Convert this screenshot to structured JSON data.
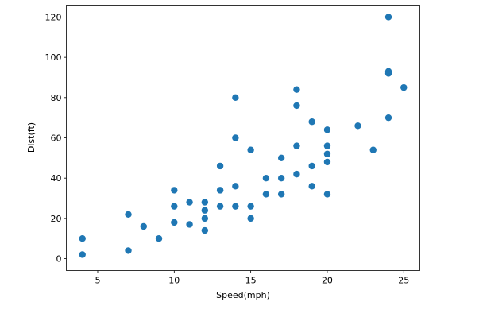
{
  "chart_data": {
    "type": "scatter",
    "title": "",
    "xlabel": "Speed(mph)",
    "ylabel": "Dist(ft)",
    "xlim": [
      2.95,
      26.05
    ],
    "ylim": [
      -5.9,
      125.9
    ],
    "xticks": [
      5,
      10,
      15,
      20,
      25
    ],
    "yticks": [
      0,
      20,
      40,
      60,
      80,
      100,
      120
    ],
    "grid": false,
    "color": "#1f77b4",
    "x": [
      4,
      4,
      7,
      7,
      8,
      9,
      10,
      10,
      10,
      11,
      11,
      12,
      12,
      12,
      12,
      13,
      13,
      13,
      13,
      14,
      14,
      14,
      14,
      15,
      15,
      15,
      16,
      16,
      17,
      17,
      17,
      18,
      18,
      18,
      18,
      19,
      19,
      19,
      20,
      20,
      20,
      20,
      20,
      22,
      23,
      24,
      24,
      24,
      24,
      25
    ],
    "y": [
      2,
      10,
      4,
      22,
      16,
      10,
      18,
      26,
      34,
      17,
      28,
      14,
      20,
      24,
      28,
      26,
      34,
      34,
      46,
      26,
      36,
      60,
      80,
      20,
      26,
      54,
      32,
      40,
      32,
      40,
      50,
      42,
      56,
      76,
      84,
      36,
      46,
      68,
      32,
      48,
      52,
      56,
      64,
      66,
      54,
      70,
      92,
      93,
      120,
      85
    ]
  }
}
